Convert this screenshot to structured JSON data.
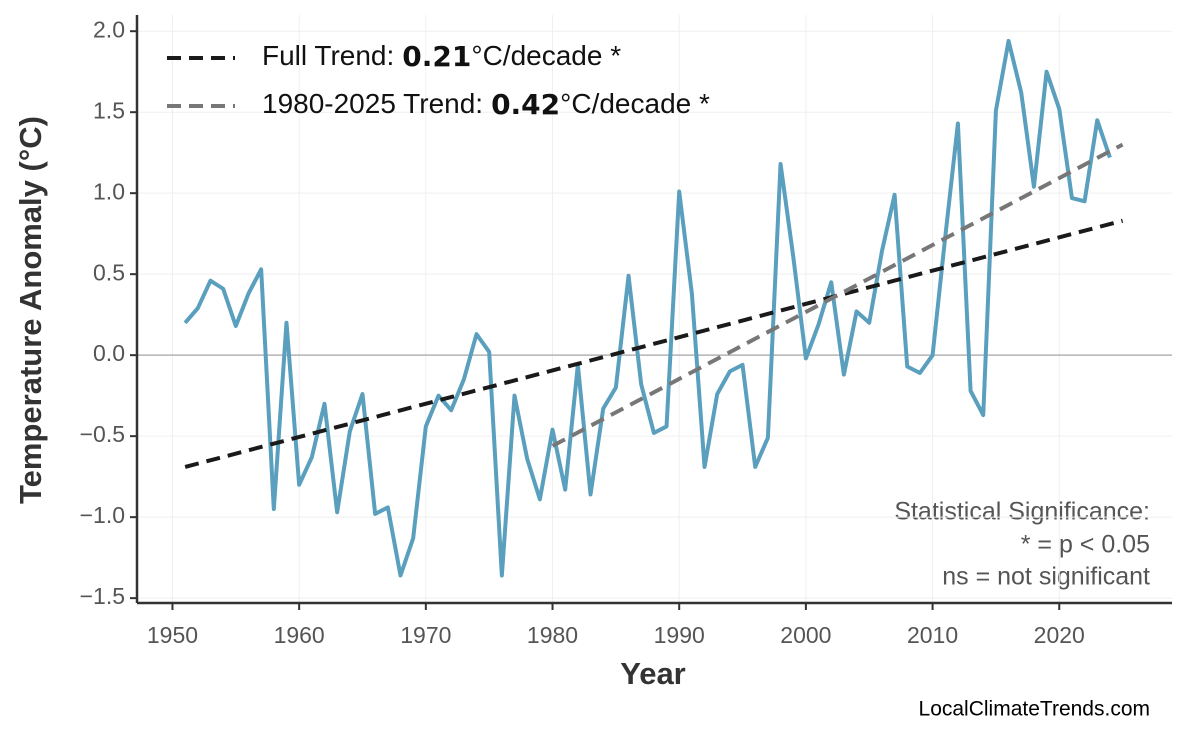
{
  "chart_data": {
    "type": "line",
    "x_label": "Year",
    "y_label": "Temperature Anomaly (°C)",
    "x": [
      1951,
      1952,
      1953,
      1954,
      1955,
      1956,
      1957,
      1958,
      1959,
      1960,
      1961,
      1962,
      1963,
      1964,
      1965,
      1966,
      1967,
      1968,
      1969,
      1970,
      1971,
      1972,
      1973,
      1974,
      1975,
      1976,
      1977,
      1978,
      1979,
      1980,
      1981,
      1982,
      1983,
      1984,
      1985,
      1986,
      1987,
      1988,
      1989,
      1990,
      1991,
      1992,
      1993,
      1994,
      1995,
      1996,
      1997,
      1998,
      1999,
      2000,
      2001,
      2002,
      2003,
      2004,
      2005,
      2006,
      2007,
      2008,
      2009,
      2010,
      2011,
      2012,
      2013,
      2014,
      2015,
      2016,
      2017,
      2018,
      2019,
      2020,
      2021,
      2022,
      2023,
      2024
    ],
    "values": [
      0.2,
      0.29,
      0.46,
      0.41,
      0.18,
      0.38,
      0.53,
      -0.95,
      0.2,
      -0.8,
      -0.63,
      -0.3,
      -0.97,
      -0.47,
      -0.24,
      -0.98,
      -0.94,
      -1.36,
      -1.13,
      -0.44,
      -0.25,
      -0.34,
      -0.15,
      0.13,
      0.02,
      -1.36,
      -0.25,
      -0.64,
      -0.89,
      -0.46,
      -0.83,
      -0.06,
      -0.86,
      -0.33,
      -0.2,
      0.49,
      -0.18,
      -0.48,
      -0.44,
      1.01,
      0.38,
      -0.69,
      -0.24,
      -0.1,
      -0.06,
      -0.69,
      -0.51,
      1.18,
      0.61,
      -0.02,
      0.19,
      0.45,
      -0.12,
      0.27,
      0.2,
      0.64,
      0.99,
      -0.07,
      -0.11,
      0.0,
      0.73,
      1.43,
      -0.22,
      -0.37,
      1.51,
      1.94,
      1.62,
      1.04,
      1.75,
      1.52,
      0.97,
      0.95,
      1.45,
      1.22
    ],
    "color": "#5a9fbd",
    "trend_lines": [
      {
        "name": "Full Trend:",
        "slope": 0.21,
        "unit": "°C/decade *",
        "color": "#1a1a1a",
        "x": [
          1951,
          2025
        ],
        "values": [
          -0.69,
          0.83
        ]
      },
      {
        "name": "1980-2025 Trend:",
        "slope": 0.42,
        "unit": "°C/decade *",
        "color": "#777777",
        "x": [
          1980,
          2025
        ],
        "values": [
          -0.56,
          1.3
        ]
      }
    ],
    "hline": 0,
    "xlim": [
      1947.2,
      2028.9
    ],
    "ylim": [
      -1.53,
      2.1
    ],
    "xticks": [
      1950,
      1960,
      1970,
      1980,
      1990,
      2000,
      2010,
      2020
    ],
    "yticks": [
      {
        "value": -1.5,
        "label": "−1.5"
      },
      {
        "value": -1.0,
        "label": "−1.0"
      },
      {
        "value": -0.5,
        "label": "−0.5"
      },
      {
        "value": 0,
        "label": "0.0"
      },
      0.5,
      {
        "value": 1.0,
        "label": "1.0"
      },
      1.5,
      {
        "value": 2.0,
        "label": "2.0"
      }
    ],
    "grid": true,
    "legend": "upper left",
    "annotations": [
      "Statistical Significance:",
      "* = p < 0.05",
      "ns = not significant"
    ],
    "source": "LocalClimateTrends.com"
  }
}
